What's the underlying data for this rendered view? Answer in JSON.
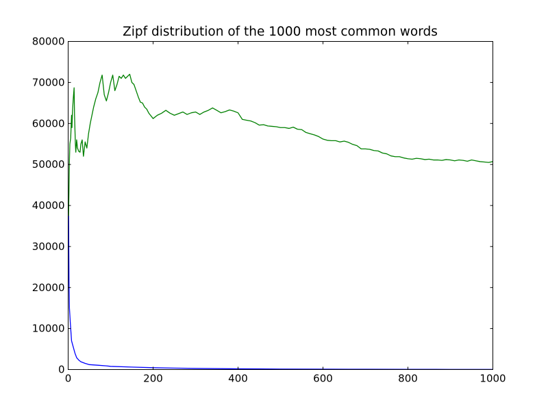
{
  "chart_data": {
    "type": "line",
    "title": "Zipf distribution of the 1000 most common words",
    "xlabel": "",
    "ylabel": "",
    "xlim": [
      0,
      1000
    ],
    "ylim": [
      0,
      80000
    ],
    "x_ticks": [
      0,
      200,
      400,
      600,
      800,
      1000
    ],
    "y_ticks": [
      0,
      10000,
      20000,
      30000,
      40000,
      50000,
      60000,
      70000,
      80000
    ],
    "x_tick_labels": [
      "0",
      "200",
      "400",
      "600",
      "800",
      "1000"
    ],
    "y_tick_labels": [
      "0",
      "10000",
      "20000",
      "30000",
      "40000",
      "50000",
      "60000",
      "70000",
      "80000"
    ],
    "grid": false,
    "legend": "none",
    "series": [
      {
        "color": "#0000ff",
        "points": [
          [
            1,
            37500
          ],
          [
            2,
            22000
          ],
          [
            3,
            15000
          ],
          [
            5,
            11500
          ],
          [
            8,
            7000
          ],
          [
            12,
            5500
          ],
          [
            16,
            4000
          ],
          [
            20,
            2900
          ],
          [
            25,
            2300
          ],
          [
            30,
            1900
          ],
          [
            40,
            1500
          ],
          [
            50,
            1200
          ],
          [
            70,
            1050
          ],
          [
            90,
            900
          ],
          [
            100,
            780
          ],
          [
            150,
            600
          ],
          [
            200,
            450
          ],
          [
            250,
            350
          ],
          [
            300,
            280
          ],
          [
            400,
            180
          ],
          [
            500,
            130
          ],
          [
            600,
            100
          ],
          [
            700,
            80
          ],
          [
            800,
            60
          ],
          [
            900,
            45
          ],
          [
            1000,
            35
          ]
        ]
      },
      {
        "color": "#008000",
        "points": [
          [
            1,
            37500
          ],
          [
            2,
            44000
          ],
          [
            3,
            51000
          ],
          [
            4,
            55000
          ],
          [
            6,
            56500
          ],
          [
            8,
            62000
          ],
          [
            9,
            59000
          ],
          [
            10,
            62500
          ],
          [
            12,
            66000
          ],
          [
            14,
            68700
          ],
          [
            15,
            62000
          ],
          [
            17,
            55000
          ],
          [
            18,
            53000
          ],
          [
            20,
            56000
          ],
          [
            22,
            54000
          ],
          [
            25,
            53200
          ],
          [
            28,
            53000
          ],
          [
            30,
            55000
          ],
          [
            33,
            56000
          ],
          [
            36,
            52000
          ],
          [
            40,
            55500
          ],
          [
            44,
            54000
          ],
          [
            48,
            57500
          ],
          [
            52,
            60000
          ],
          [
            56,
            62000
          ],
          [
            60,
            64000
          ],
          [
            65,
            66000
          ],
          [
            70,
            67500
          ],
          [
            75,
            70000
          ],
          [
            80,
            71800
          ],
          [
            85,
            67000
          ],
          [
            90,
            65500
          ],
          [
            95,
            67500
          ],
          [
            100,
            70000
          ],
          [
            105,
            71800
          ],
          [
            110,
            68000
          ],
          [
            115,
            69500
          ],
          [
            120,
            71500
          ],
          [
            125,
            71000
          ],
          [
            130,
            71800
          ],
          [
            135,
            71000
          ],
          [
            140,
            71500
          ],
          [
            145,
            72000
          ],
          [
            150,
            70000
          ],
          [
            155,
            69500
          ],
          [
            160,
            68000
          ],
          [
            165,
            66500
          ],
          [
            170,
            65200
          ],
          [
            175,
            65000
          ],
          [
            180,
            64000
          ],
          [
            185,
            63500
          ],
          [
            190,
            62500
          ],
          [
            200,
            61200
          ],
          [
            210,
            62000
          ],
          [
            220,
            62500
          ],
          [
            230,
            63200
          ],
          [
            240,
            62500
          ],
          [
            250,
            62000
          ],
          [
            260,
            62400
          ],
          [
            270,
            62800
          ],
          [
            280,
            62200
          ],
          [
            290,
            62600
          ],
          [
            300,
            62800
          ],
          [
            310,
            62200
          ],
          [
            320,
            62800
          ],
          [
            330,
            63200
          ],
          [
            340,
            63800
          ],
          [
            350,
            63200
          ],
          [
            360,
            62600
          ],
          [
            370,
            62900
          ],
          [
            380,
            63300
          ],
          [
            390,
            63000
          ],
          [
            400,
            62600
          ],
          [
            410,
            61000
          ],
          [
            420,
            60800
          ],
          [
            430,
            60600
          ],
          [
            440,
            60200
          ],
          [
            450,
            59600
          ],
          [
            460,
            59700
          ],
          [
            470,
            59400
          ],
          [
            480,
            59300
          ],
          [
            490,
            59200
          ],
          [
            500,
            59000
          ],
          [
            510,
            59000
          ],
          [
            520,
            58800
          ],
          [
            530,
            59100
          ],
          [
            540,
            58600
          ],
          [
            550,
            58500
          ],
          [
            560,
            57800
          ],
          [
            570,
            57500
          ],
          [
            580,
            57200
          ],
          [
            590,
            56800
          ],
          [
            600,
            56200
          ],
          [
            610,
            55900
          ],
          [
            620,
            55800
          ],
          [
            630,
            55800
          ],
          [
            640,
            55500
          ],
          [
            650,
            55700
          ],
          [
            660,
            55400
          ],
          [
            670,
            54900
          ],
          [
            680,
            54600
          ],
          [
            690,
            53800
          ],
          [
            700,
            53800
          ],
          [
            710,
            53700
          ],
          [
            720,
            53400
          ],
          [
            730,
            53300
          ],
          [
            740,
            52800
          ],
          [
            750,
            52600
          ],
          [
            760,
            52100
          ],
          [
            770,
            51900
          ],
          [
            780,
            51900
          ],
          [
            790,
            51600
          ],
          [
            800,
            51400
          ],
          [
            810,
            51300
          ],
          [
            820,
            51500
          ],
          [
            830,
            51400
          ],
          [
            840,
            51200
          ],
          [
            850,
            51300
          ],
          [
            860,
            51100
          ],
          [
            870,
            51100
          ],
          [
            880,
            51000
          ],
          [
            890,
            51200
          ],
          [
            900,
            51100
          ],
          [
            910,
            50900
          ],
          [
            920,
            51100
          ],
          [
            930,
            51000
          ],
          [
            940,
            50800
          ],
          [
            950,
            51100
          ],
          [
            960,
            50900
          ],
          [
            970,
            50700
          ],
          [
            980,
            50600
          ],
          [
            990,
            50500
          ],
          [
            1000,
            50700
          ]
        ]
      }
    ]
  }
}
